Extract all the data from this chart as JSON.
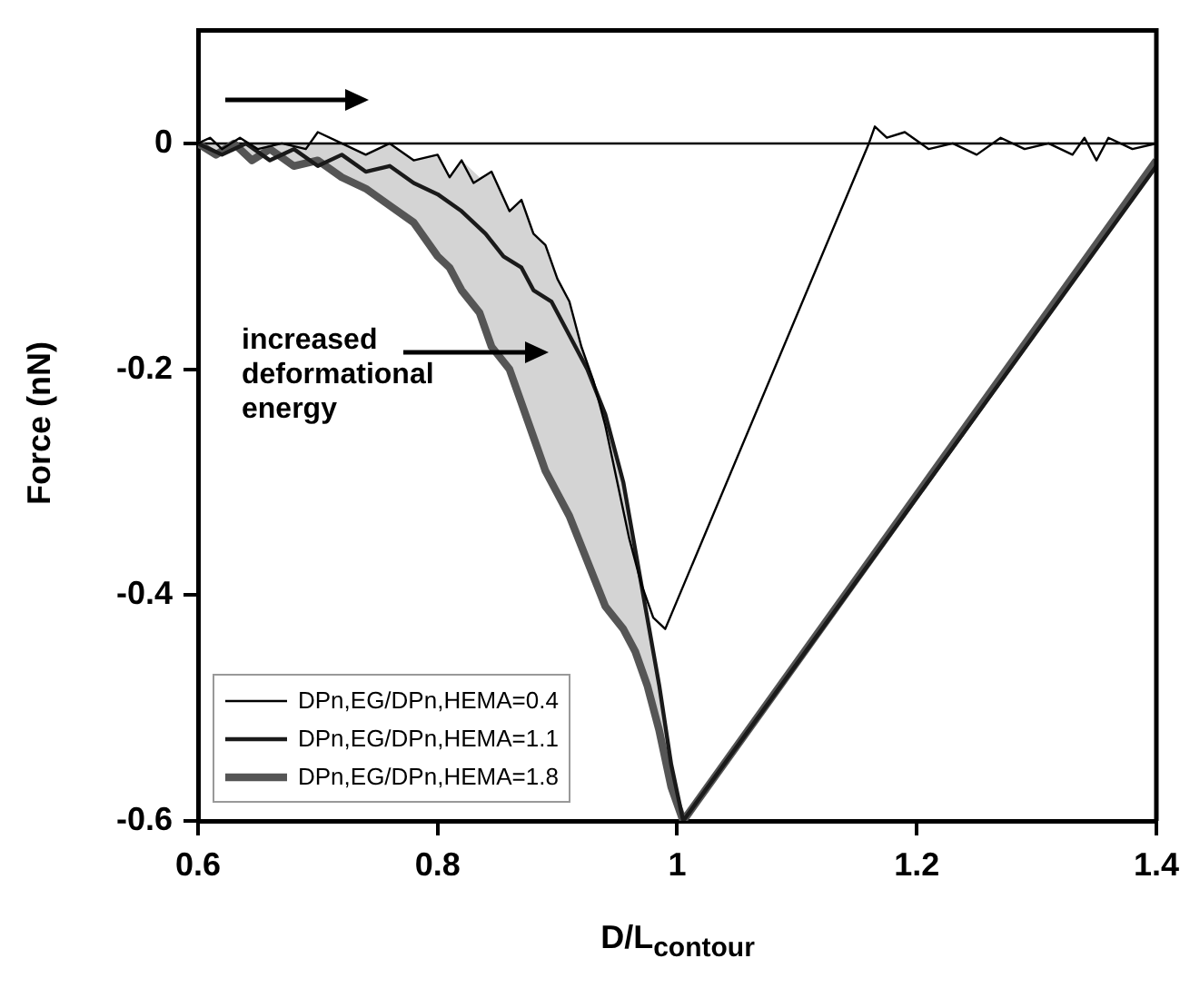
{
  "chart_data": {
    "type": "line",
    "xlabel": "D/L$_{contour}$",
    "ylabel": "Force (nN)",
    "xlim": [
      0.6,
      1.4
    ],
    "xticks": [
      0.6,
      0.8,
      1,
      1.2,
      1.4
    ],
    "ylim": [
      -0.6,
      0.1
    ],
    "yticks": [
      0,
      -0.2,
      -0.4,
      -0.6
    ],
    "grid": false,
    "legend": "bottom left",
    "marker": "none",
    "line_style": "solid",
    "ref_lines": [
      {
        "axis": "y",
        "value": 0,
        "color": "#000000"
      }
    ],
    "annotations": [
      "increased deformational energy"
    ],
    "series": [
      {
        "name": "DPn,EG/DPn,HEMA=0.4",
        "color": "#000000",
        "x": [
          0.6,
          0.61,
          0.62,
          0.635,
          0.65,
          0.67,
          0.69,
          0.7,
          0.72,
          0.74,
          0.76,
          0.78,
          0.8,
          0.81,
          0.82,
          0.83,
          0.845,
          0.86,
          0.87,
          0.88,
          0.89,
          0.9,
          0.91,
          0.92,
          0.93,
          0.94,
          0.95,
          0.96,
          0.97,
          0.98,
          0.99,
          1.16,
          1.165,
          1.175,
          1.19,
          1.21,
          1.23,
          1.25,
          1.27,
          1.29,
          1.31,
          1.33,
          1.34,
          1.35,
          1.36,
          1.38,
          1.4
        ],
        "values": [
          0,
          0.005,
          -0.005,
          0.005,
          -0.005,
          0,
          -0.005,
          0.01,
          0,
          -0.01,
          0,
          -0.015,
          -0.01,
          -0.03,
          -0.015,
          -0.035,
          -0.025,
          -0.06,
          -0.05,
          -0.08,
          -0.09,
          -0.12,
          -0.14,
          -0.18,
          -0.21,
          -0.25,
          -0.3,
          -0.35,
          -0.39,
          -0.42,
          -0.43,
          0,
          0.015,
          0.005,
          0.01,
          -0.005,
          0,
          -0.01,
          0.005,
          -0.005,
          0,
          -0.01,
          0.005,
          -0.015,
          0.005,
          -0.005,
          0
        ]
      },
      {
        "name": "DPn,EG/DPn,HEMA=1.1",
        "color": "#1a1a1a",
        "x": [
          0.6,
          0.62,
          0.64,
          0.66,
          0.68,
          0.7,
          0.72,
          0.74,
          0.76,
          0.78,
          0.8,
          0.82,
          0.84,
          0.855,
          0.87,
          0.88,
          0.895,
          0.91,
          0.925,
          0.94,
          0.955,
          0.965,
          0.975,
          0.985,
          0.995,
          1.005,
          1.4
        ],
        "values": [
          0,
          -0.01,
          0,
          -0.015,
          -0.005,
          -0.02,
          -0.01,
          -0.025,
          -0.02,
          -0.035,
          -0.045,
          -0.06,
          -0.08,
          -0.1,
          -0.11,
          -0.13,
          -0.14,
          -0.17,
          -0.2,
          -0.24,
          -0.3,
          -0.36,
          -0.42,
          -0.48,
          -0.55,
          -0.6,
          -0.02
        ]
      },
      {
        "name": "DPn,EG/DPn,HEMA=1.8",
        "color": "#555555",
        "x": [
          0.6,
          0.615,
          0.63,
          0.645,
          0.66,
          0.68,
          0.7,
          0.72,
          0.74,
          0.76,
          0.78,
          0.8,
          0.81,
          0.82,
          0.835,
          0.845,
          0.86,
          0.87,
          0.88,
          0.89,
          0.9,
          0.91,
          0.925,
          0.94,
          0.955,
          0.965,
          0.975,
          0.985,
          0.995,
          1.005,
          1.4
        ],
        "values": [
          0,
          -0.01,
          0,
          -0.015,
          -0.005,
          -0.02,
          -0.015,
          -0.03,
          -0.04,
          -0.055,
          -0.07,
          -0.1,
          -0.11,
          -0.13,
          -0.15,
          -0.18,
          -0.2,
          -0.23,
          -0.26,
          -0.29,
          -0.31,
          -0.33,
          -0.37,
          -0.41,
          -0.43,
          -0.45,
          -0.48,
          -0.52,
          -0.57,
          -0.6,
          -0.015
        ],
        "lower": [
          0,
          -0.01,
          0,
          -0.015,
          -0.005,
          -0.02,
          -0.015,
          -0.03,
          -0.04,
          -0.055,
          -0.07,
          -0.1,
          -0.11,
          -0.13,
          -0.15,
          -0.18,
          -0.2,
          -0.23,
          -0.26,
          -0.29,
          -0.31,
          -0.33,
          -0.37,
          -0.41,
          -0.43,
          -0.45,
          -0.48,
          -0.52,
          -0.57,
          -0.6,
          null
        ],
        "upper": [
          0,
          0,
          0,
          0,
          0,
          0,
          0,
          0,
          -0.01,
          0,
          -0.015,
          -0.01,
          -0.03,
          -0.015,
          -0.03,
          -0.025,
          -0.06,
          -0.05,
          -0.08,
          -0.09,
          -0.12,
          -0.14,
          -0.195,
          -0.24,
          -0.3,
          -0.36,
          -0.42,
          -0.48,
          -0.55,
          -0.6,
          null
        ]
      }
    ]
  }
}
